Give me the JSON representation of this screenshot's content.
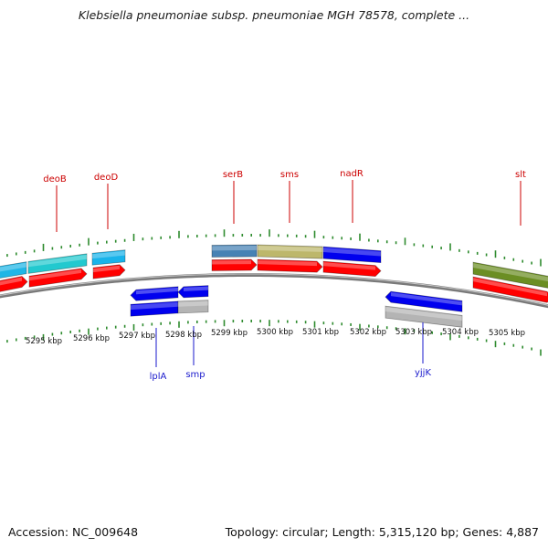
{
  "title": "Klebsiella pneumoniae subsp. pneumoniae MGH 78578, complete ...",
  "footer": {
    "accession": "Accession: NC_009648",
    "summary": "Topology: circular; Length: 5,315,120 bp; Genes: 4,887"
  },
  "colors": {
    "tick": "#2e8b2e",
    "forward_label": "#cc0000",
    "reverse_label": "#1a1acc",
    "backbone": "#808080",
    "cds_forward": "#ff0000",
    "cds_reverse": "#0000ee",
    "gene_gray": "#b4b4b4"
  },
  "kbp_ticks": [
    "5295 kbp",
    "5296 kbp",
    "5297 kbp",
    "5298 kbp",
    "5299 kbp",
    "5300 kbp",
    "5301 kbp",
    "5302 kbp",
    "5303 kbp",
    "5304 kbp",
    "5305 kbp"
  ],
  "forward_genes": [
    {
      "label": "",
      "color": "#1fb6e6"
    },
    {
      "label": "deoB",
      "color": "#22c9cf"
    },
    {
      "label": "deoD",
      "color": "#19b3ea"
    },
    {
      "label": "serB",
      "color": "#4682b4"
    },
    {
      "label": "sms",
      "color": "#bdb76b"
    },
    {
      "label": "nadR",
      "color": "#0000ee"
    },
    {
      "label": "slt",
      "color": "#6b8e23"
    }
  ],
  "forward_cds": [
    "",
    "",
    "",
    "",
    "",
    "",
    ""
  ],
  "reverse_genes": [
    {
      "label": "lplA",
      "color": "#0000ee"
    },
    {
      "label": "smp",
      "color": "#b4b4b4"
    },
    {
      "label": "yjjK",
      "color": "#b4b4b4"
    }
  ]
}
